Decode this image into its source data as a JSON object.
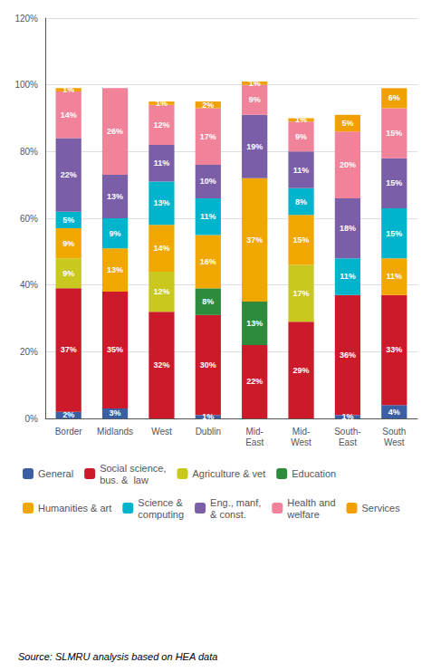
{
  "chart_data": {
    "type": "bar",
    "stacked": true,
    "data_labels": true,
    "grid": true,
    "legend": "bottom",
    "categories": [
      "Border",
      "Midlands",
      "West",
      "Dublin",
      "Mid-\nEast",
      "Mid-\nWest",
      "South-\nEast",
      "South\nWest"
    ],
    "ylim": [
      0,
      120
    ],
    "yticks": [
      {
        "value": 0,
        "label": "0%"
      },
      {
        "value": 20,
        "label": "20%"
      },
      {
        "value": 40,
        "label": "40%"
      },
      {
        "value": 60,
        "label": "60%"
      },
      {
        "value": 80,
        "label": "80%"
      },
      {
        "value": 100,
        "label": "100%"
      },
      {
        "value": 120,
        "label": "120%"
      }
    ],
    "annotations": [
      "Source: SLMRU analysis based on HEA data"
    ],
    "series": [
      {
        "name": "General",
        "color": "#3c5fa3",
        "values": [
          2,
          3,
          0,
          1,
          0,
          0,
          1,
          4
        ],
        "value_labels": [
          "2%",
          "3%",
          null,
          "1%",
          null,
          null,
          "1%",
          "4%"
        ]
      },
      {
        "name": "Social science,\nbus. &  law",
        "color": "#cc1a2a",
        "values": [
          37,
          35,
          32,
          30,
          22,
          29,
          36,
          33
        ],
        "value_labels": [
          "37%",
          "35%",
          "32%",
          "30%",
          "22%",
          "29%",
          "36%",
          "33%"
        ]
      },
      {
        "name": "Agriculture & vet",
        "color": "#c8c81e",
        "values": [
          9,
          0,
          12,
          0,
          0,
          17,
          0,
          0
        ],
        "value_labels": [
          "9%",
          null,
          "12%",
          null,
          null,
          "17%",
          null,
          null
        ]
      },
      {
        "name": "Education",
        "color": "#2d8c3c",
        "values": [
          0,
          0,
          0,
          8,
          13,
          0,
          0,
          0
        ],
        "value_labels": [
          null,
          null,
          null,
          "8%",
          "13%",
          null,
          null,
          null
        ]
      },
      {
        "name": "Humanities & art",
        "color": "#f0a800",
        "values": [
          9,
          13,
          14,
          16,
          37,
          15,
          0,
          11
        ],
        "value_labels": [
          "9%",
          "13%",
          "14%",
          "16%",
          "37%",
          "15%",
          null,
          "11%"
        ]
      },
      {
        "name": "Science &\ncomputing",
        "color": "#00b4cc",
        "values": [
          5,
          9,
          13,
          11,
          0,
          8,
          11,
          15
        ],
        "value_labels": [
          "5%",
          "9%",
          "13%",
          "11%",
          null,
          "8%",
          "11%",
          "15%"
        ]
      },
      {
        "name": "Eng., manf,\n& const.",
        "color": "#7b5ea8",
        "values": [
          22,
          13,
          11,
          10,
          19,
          11,
          18,
          15
        ],
        "value_labels": [
          "22%",
          "13%",
          "11%",
          "10%",
          "19%",
          "11%",
          "18%",
          "15%"
        ]
      },
      {
        "name": "Health and\nwelfare",
        "color": "#f0829a",
        "values": [
          14,
          26,
          12,
          17,
          9,
          9,
          20,
          15
        ],
        "value_labels": [
          "14%",
          "26%",
          "12%",
          "17%",
          "9%",
          "9%",
          "20%",
          "15%"
        ]
      },
      {
        "name": "Services",
        "color": "#f0a000",
        "values": [
          1,
          0,
          1,
          2,
          1,
          1,
          5,
          6
        ],
        "value_labels": [
          "1%",
          null,
          "1%",
          "2%",
          "1%",
          "1%",
          "5%",
          "6%"
        ]
      }
    ]
  }
}
